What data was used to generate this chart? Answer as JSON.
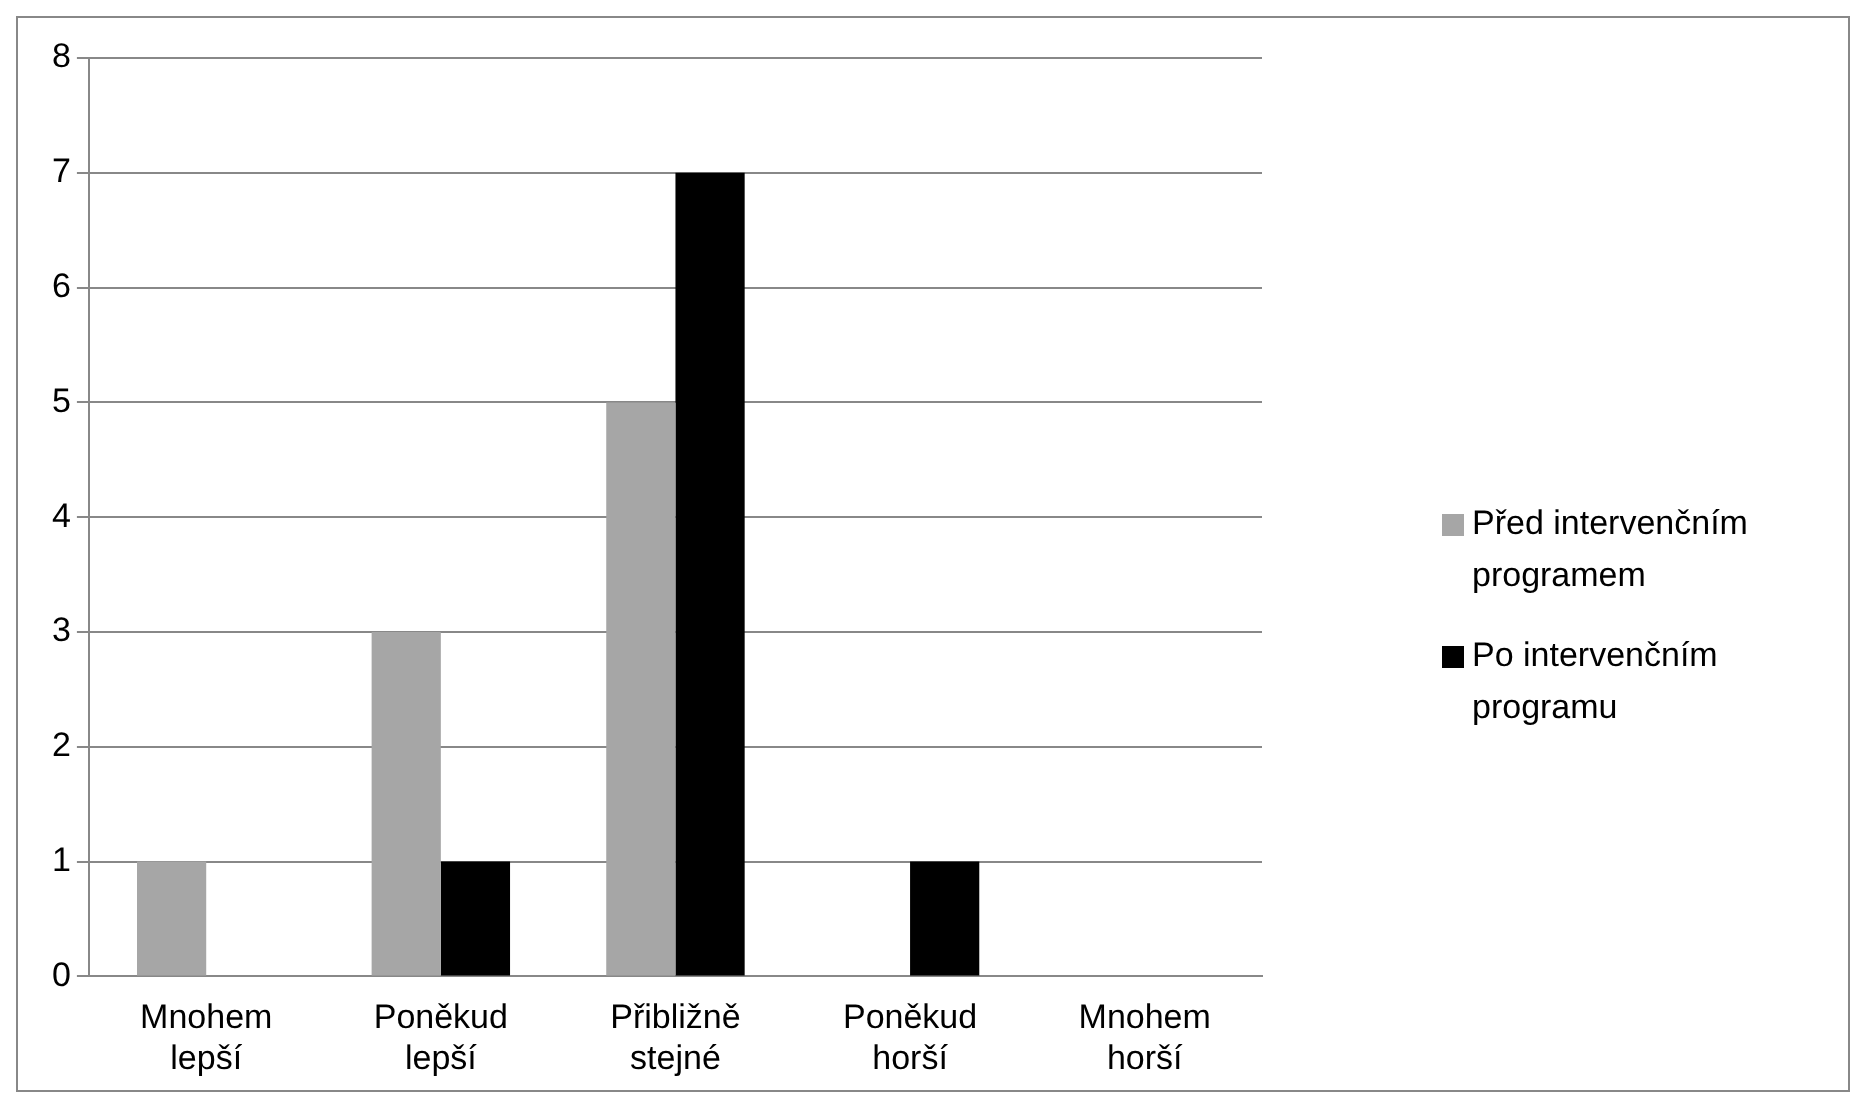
{
  "chart_data": {
    "type": "bar",
    "categories": [
      "Mnohem lepší",
      "Poněkud lepší",
      "Přibližně stejné",
      "Poněkud horší",
      "Mnohem horší"
    ],
    "series": [
      {
        "name": "Před intervenčním programem",
        "color": "#a6a6a6",
        "values": [
          1,
          3,
          5,
          0,
          0
        ]
      },
      {
        "name": "Po intervenčním programu",
        "color": "#000000",
        "values": [
          0,
          1,
          7,
          1,
          0
        ]
      }
    ],
    "ylim": [
      0,
      8
    ],
    "yticks": [
      0,
      1,
      2,
      3,
      4,
      5,
      6,
      7,
      8
    ],
    "grid": "y",
    "legend": "right"
  }
}
